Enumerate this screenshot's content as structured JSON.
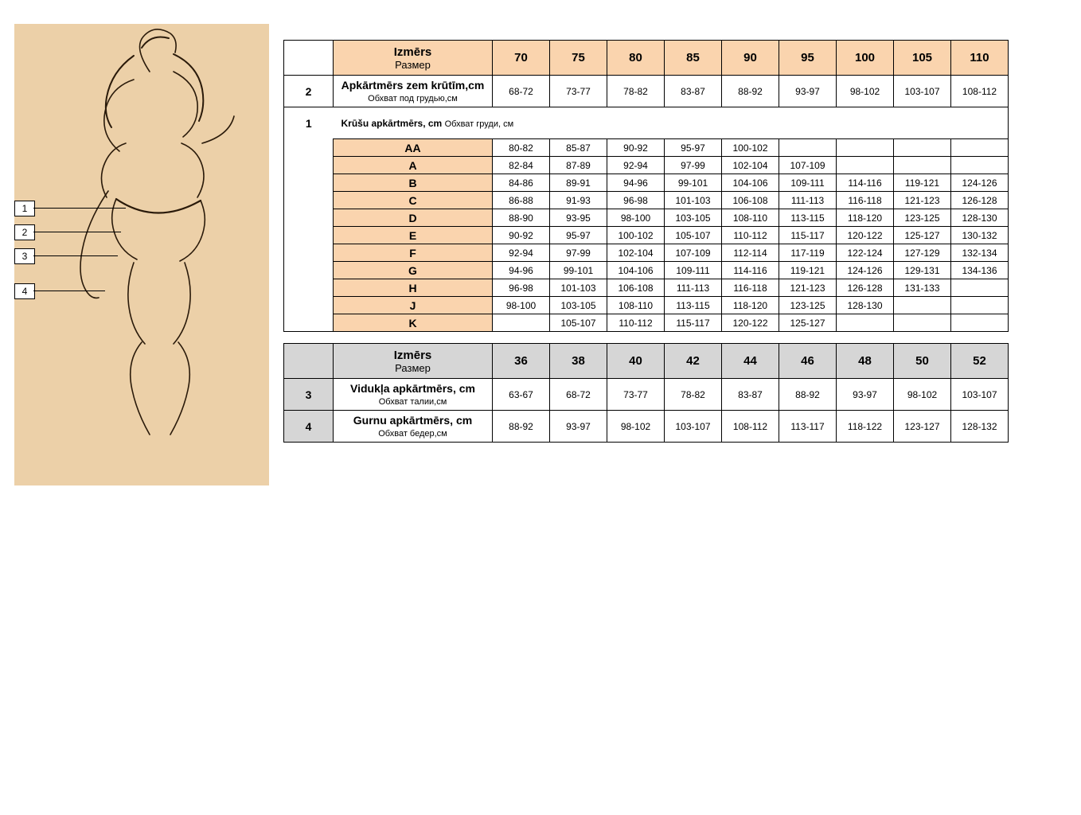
{
  "colors": {
    "peach": "#fad4ae",
    "grey": "#d6d6d6",
    "illus_bg": "#ecd0a8",
    "border": "#000000",
    "page_bg": "#ffffff"
  },
  "illustration": {
    "tags": [
      "1",
      "2",
      "3",
      "4"
    ]
  },
  "table1": {
    "size_label_lv": "Izmērs",
    "size_label_ru": "Размер",
    "sizes": [
      "70",
      "75",
      "80",
      "85",
      "90",
      "95",
      "100",
      "105",
      "110"
    ],
    "row2": {
      "num": "2",
      "lbl_lv": "Apkārtmērs zem krūtīm,cm",
      "lbl_ru": "Обхват под грудью,см",
      "vals": [
        "68-72",
        "73-77",
        "78-82",
        "83-87",
        "88-92",
        "93-97",
        "98-102",
        "103-107",
        "108-112"
      ]
    },
    "row1": {
      "num": "1",
      "lbl_lv": "Krūšu apkārtmērs, cm",
      "lbl_ru": "Обхват груди, см"
    },
    "cups": [
      {
        "cup": "AA",
        "v": [
          "80-82",
          "85-87",
          "90-92",
          "95-97",
          "100-102",
          "",
          "",
          "",
          ""
        ]
      },
      {
        "cup": "A",
        "v": [
          "82-84",
          "87-89",
          "92-94",
          "97-99",
          "102-104",
          "107-109",
          "",
          "",
          ""
        ]
      },
      {
        "cup": "B",
        "v": [
          "84-86",
          "89-91",
          "94-96",
          "99-101",
          "104-106",
          "109-111",
          "114-116",
          "119-121",
          "124-126"
        ]
      },
      {
        "cup": "C",
        "v": [
          "86-88",
          "91-93",
          "96-98",
          "101-103",
          "106-108",
          "111-113",
          "116-118",
          "121-123",
          "126-128"
        ]
      },
      {
        "cup": "D",
        "v": [
          "88-90",
          "93-95",
          "98-100",
          "103-105",
          "108-110",
          "113-115",
          "118-120",
          "123-125",
          "128-130"
        ]
      },
      {
        "cup": "E",
        "v": [
          "90-92",
          "95-97",
          "100-102",
          "105-107",
          "110-112",
          "115-117",
          "120-122",
          "125-127",
          "130-132"
        ]
      },
      {
        "cup": "F",
        "v": [
          "92-94",
          "97-99",
          "102-104",
          "107-109",
          "112-114",
          "117-119",
          "122-124",
          "127-129",
          "132-134"
        ]
      },
      {
        "cup": "G",
        "v": [
          "94-96",
          "99-101",
          "104-106",
          "109-111",
          "114-116",
          "119-121",
          "124-126",
          "129-131",
          "134-136"
        ]
      },
      {
        "cup": "H",
        "v": [
          "96-98",
          "101-103",
          "106-108",
          "111-113",
          "116-118",
          "121-123",
          "126-128",
          "131-133",
          ""
        ]
      },
      {
        "cup": "J",
        "v": [
          "98-100",
          "103-105",
          "108-110",
          "113-115",
          "118-120",
          "123-125",
          "128-130",
          "",
          ""
        ]
      },
      {
        "cup": "K",
        "v": [
          "",
          "105-107",
          "110-112",
          "115-117",
          "120-122",
          "125-127",
          "",
          "",
          ""
        ]
      }
    ]
  },
  "table2": {
    "size_label_lv": "Izmērs",
    "size_label_ru": "Размер",
    "sizes": [
      "36",
      "38",
      "40",
      "42",
      "44",
      "46",
      "48",
      "50",
      "52"
    ],
    "row3": {
      "num": "3",
      "lbl_lv": "Vidukļa apkārtmērs, cm",
      "lbl_ru": "Обхват талии,см",
      "vals": [
        "63-67",
        "68-72",
        "73-77",
        "78-82",
        "83-87",
        "88-92",
        "93-97",
        "98-102",
        "103-107"
      ]
    },
    "row4": {
      "num": "4",
      "lbl_lv": "Gurnu apkārtmērs, cm",
      "lbl_ru": "Обхват бедер,см",
      "vals": [
        "88-92",
        "93-97",
        "98-102",
        "103-107",
        "108-112",
        "113-117",
        "118-122",
        "123-127",
        "128-132"
      ]
    }
  }
}
